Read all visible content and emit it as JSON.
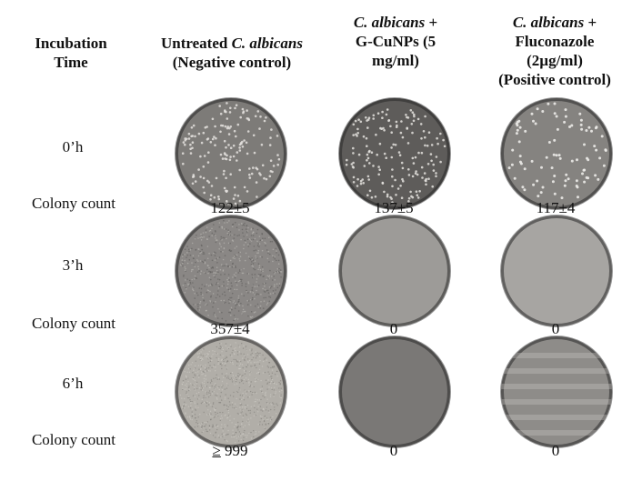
{
  "headers": {
    "incubation_line1": "Incubation",
    "incubation_line2": "Time",
    "col1_prefix": "Untreated ",
    "col1_italic": "C. albicans",
    "col1_line2": "(Negative control)",
    "col2_italic": "C. albicans",
    "col2_suffix": " +",
    "col2_line2": "G-CuNPs (5",
    "col2_line3": "mg/ml)",
    "col3_italic": "C. albicans",
    "col3_suffix": " +",
    "col3_line2": "Fluconazole",
    "col3_line3": "(2µg/ml)",
    "col3_line4": "(Positive control)"
  },
  "rows": [
    {
      "time": "0’h",
      "count_label": "Colony count",
      "counts": [
        "122±5",
        "137±5",
        "117±4"
      ]
    },
    {
      "time": "3’h",
      "count_label": "Colony count",
      "counts": [
        "357±4",
        "0",
        "0"
      ]
    },
    {
      "time": "6’h",
      "count_label": "Colony count",
      "counts_ge_symbol": "≥",
      "counts_ge_value": " 999",
      "counts": [
        "",
        "0",
        "0"
      ]
    }
  ],
  "plates": [
    {
      "id": "0h-untreated",
      "tone": "#7d7b78",
      "colonies": "dense-dots"
    },
    {
      "id": "0h-cunps",
      "tone": "#5e5c5a",
      "colonies": "dense-dots"
    },
    {
      "id": "0h-fluconazole",
      "tone": "#858380",
      "colonies": "sparse-dots"
    },
    {
      "id": "3h-untreated",
      "tone": "#8a8785",
      "colonies": "lawn-speckle"
    },
    {
      "id": "3h-cunps",
      "tone": "#9d9b98",
      "colonies": "none"
    },
    {
      "id": "3h-fluconazole",
      "tone": "#a7a5a2",
      "colonies": "none"
    },
    {
      "id": "6h-untreated",
      "tone": "#b1aea8",
      "colonies": "confluent"
    },
    {
      "id": "6h-cunps",
      "tone": "#7a7876",
      "colonies": "none"
    },
    {
      "id": "6h-fluconazole",
      "tone": "#8e8c89",
      "colonies": "streaks"
    }
  ]
}
